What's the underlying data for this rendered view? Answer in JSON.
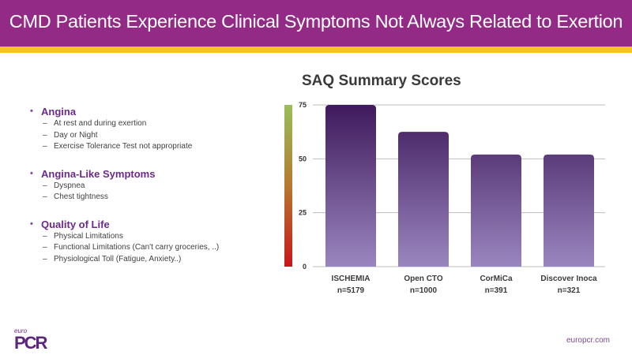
{
  "header": {
    "title": "CMD Patients Experience Clinical Symptoms Not Always Related to Exertion",
    "bg_color": "#922a86",
    "accent_color": "#f5c618"
  },
  "bullets": [
    {
      "heading": "Angina",
      "items": [
        "At rest and during exertion",
        "Day or Night",
        "Exercise Tolerance Test not appropriate"
      ]
    },
    {
      "heading": "Angina-Like Symptoms",
      "items": [
        "Dyspnea",
        "Chest tightness"
      ]
    },
    {
      "heading": "Quality of Life",
      "items": [
        "Physical Limitations",
        "Functional Limitations (Can't carry groceries, ..)",
        "Physiological Toll (Fatigue, Anxiety..)"
      ]
    }
  ],
  "bullet_glyph": "•",
  "dash_glyph": "–",
  "chart_data": {
    "type": "bar",
    "title": "SAQ Summary Scores",
    "categories": [
      "ISCHEMIA",
      "Open CTO",
      "CorMiCa",
      "Discover Inoca"
    ],
    "sample_sizes": [
      "n=5179",
      "n=1000",
      "n=391",
      "n=321"
    ],
    "values": [
      75,
      62.5,
      52,
      52
    ],
    "ylim": [
      0,
      75
    ],
    "yticks": [
      0,
      25,
      50,
      75
    ],
    "grid": true,
    "xlabel": "",
    "ylabel": "",
    "color_scale": {
      "low": "#c8161a",
      "mid": "#b5792f",
      "high": "#98bf5a"
    },
    "bar_gradient": {
      "top": "#3f1a5c",
      "bottom": "#9a86bf"
    }
  },
  "footer": {
    "logo_small": "euro",
    "logo_big": "PCR",
    "url": "europcr.com"
  }
}
